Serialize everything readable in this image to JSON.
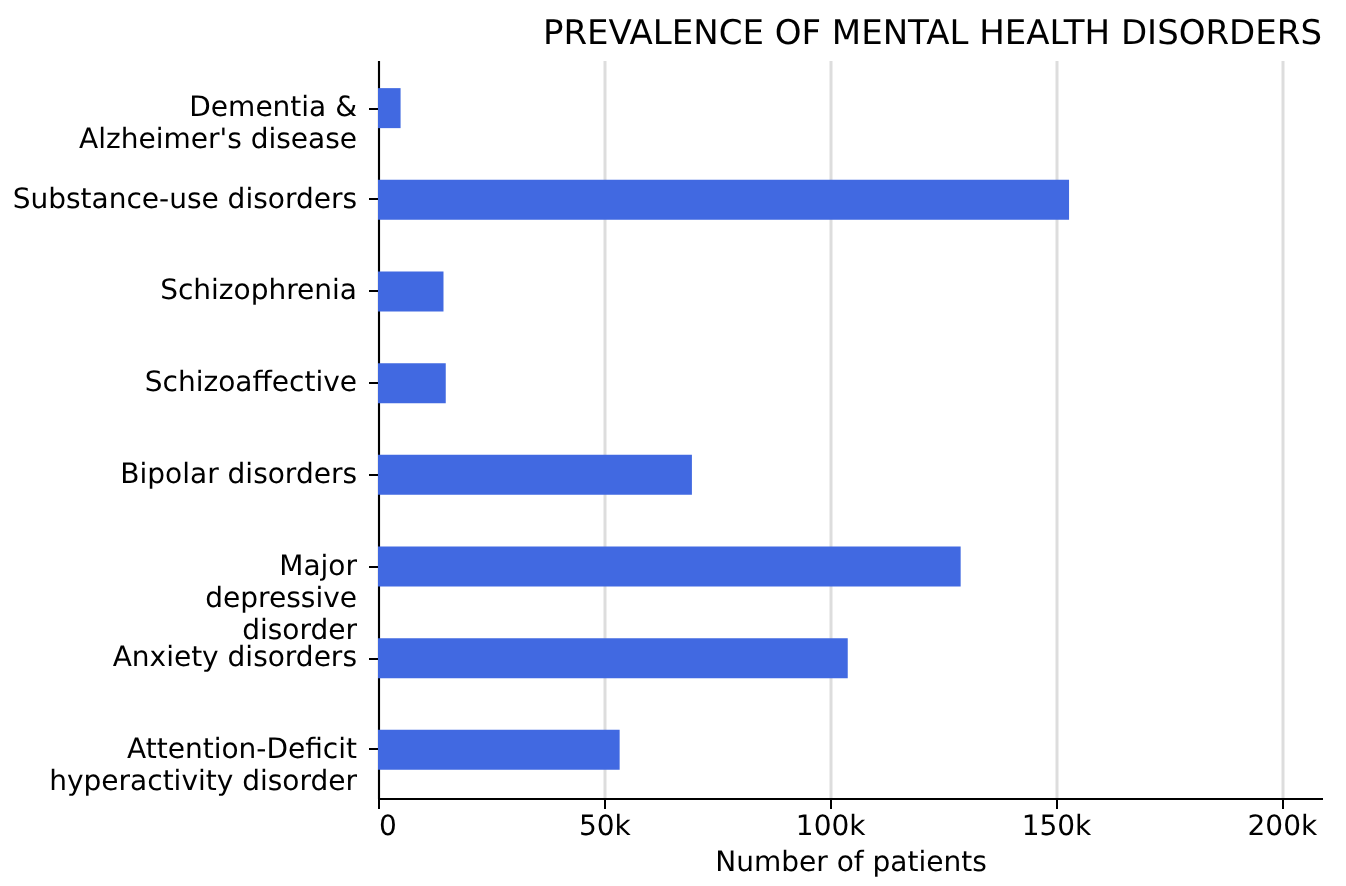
{
  "chart_data": {
    "type": "bar",
    "orientation": "horizontal",
    "title": "PREVALENCE OF MENTAL HEALTH DISORDERS",
    "xlabel": "Number of patients",
    "categories": [
      "Dementia &\nAlzheimer's disease",
      "Substance-use disorders",
      "Schizophrenia",
      "Schizoaffective",
      "Bipolar disorders",
      "Major\ndepressive\ndisorder",
      "Anxiety disorders",
      "Attention-Deficit\nhyperactivity disorder"
    ],
    "values": [
      5000,
      153000,
      14500,
      15000,
      69500,
      129000,
      104000,
      53500
    ],
    "color": "#4169e1",
    "xlim": [
      0,
      209000
    ],
    "xticks": [
      {
        "value": 0,
        "label": "0"
      },
      {
        "value": 50000,
        "label": "50k"
      },
      {
        "value": 100000,
        "label": "100k"
      },
      {
        "value": 150000,
        "label": "150k"
      },
      {
        "value": 200000,
        "label": "200k"
      }
    ],
    "grid": "x"
  }
}
